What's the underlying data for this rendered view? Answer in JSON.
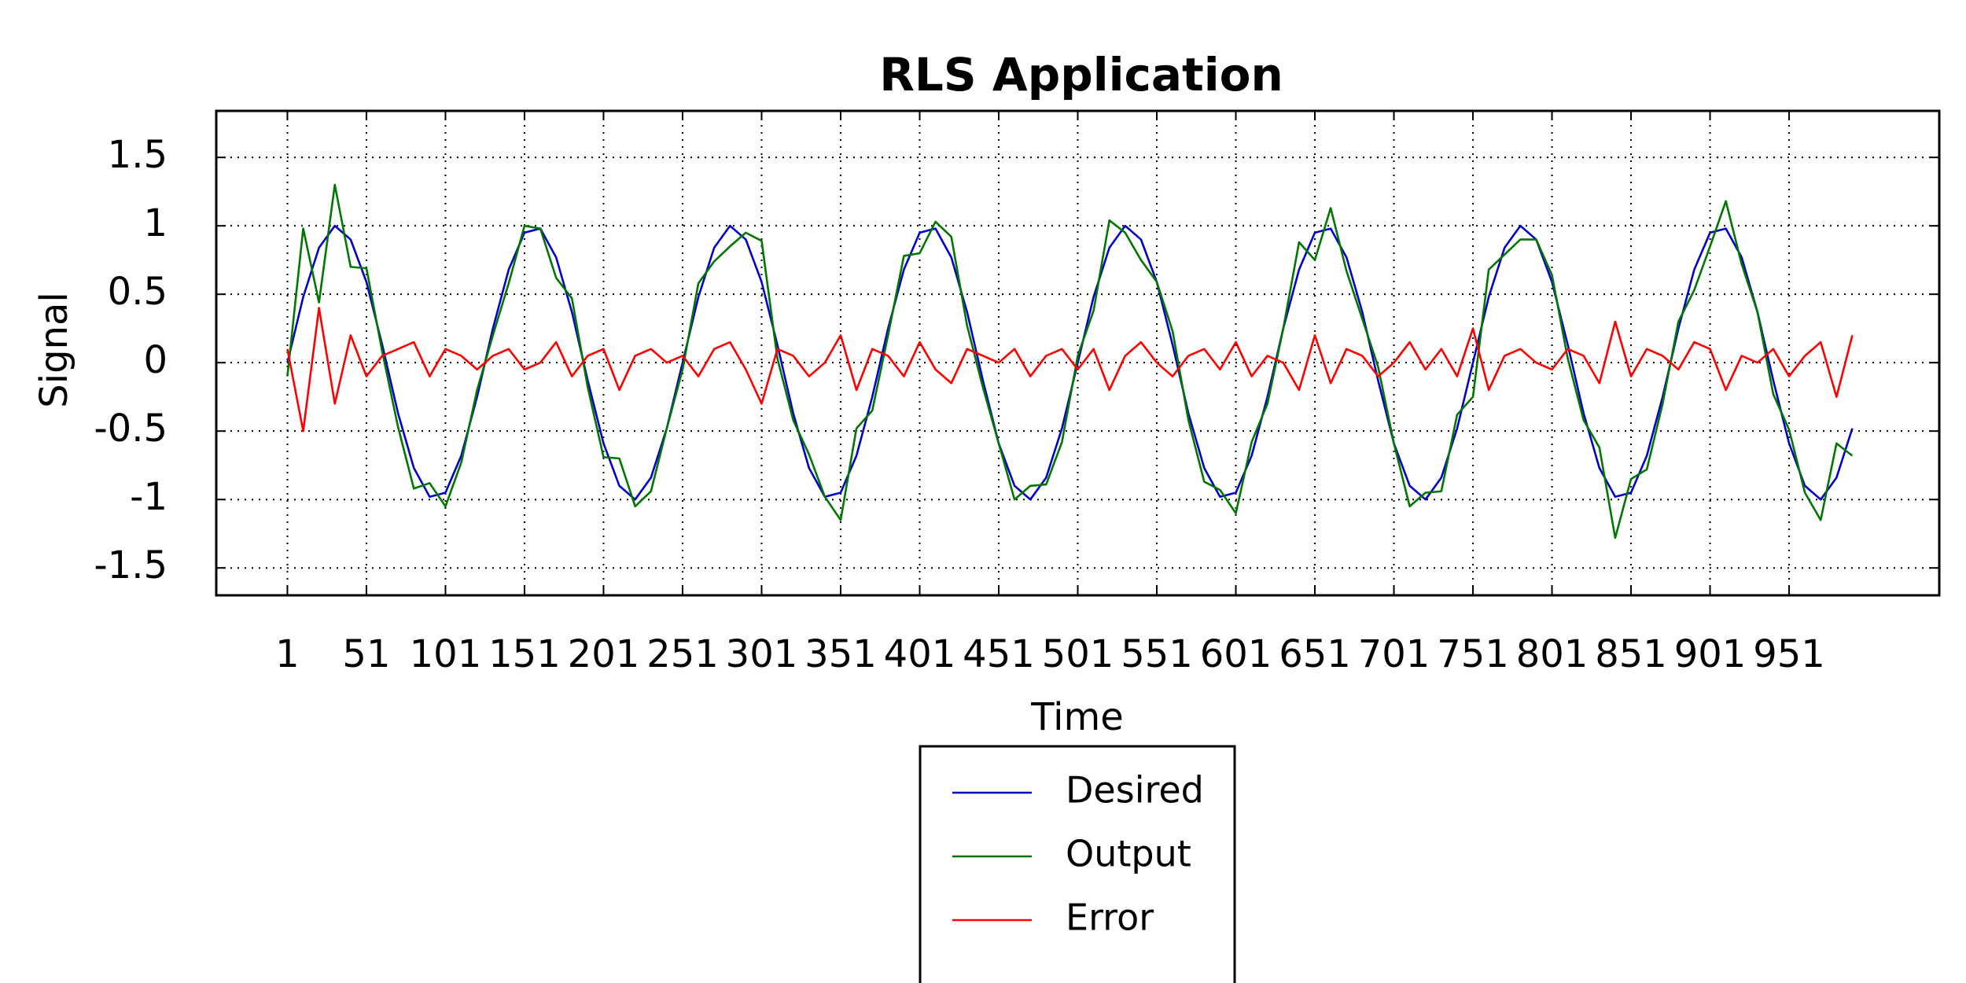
{
  "chart_data": {
    "type": "line",
    "title": "RLS Application",
    "xlabel": "Time",
    "ylabel": "Signal",
    "x": [
      1,
      11,
      21,
      31,
      41,
      51,
      61,
      71,
      81,
      91,
      101,
      111,
      121,
      131,
      141,
      151,
      161,
      171,
      181,
      191,
      201,
      211,
      221,
      231,
      241,
      251,
      261,
      271,
      281,
      291,
      301,
      311,
      321,
      331,
      341,
      351,
      361,
      371,
      381,
      391,
      401,
      411,
      421,
      431,
      441,
      451,
      461,
      471,
      481,
      491,
      501,
      511,
      521,
      531,
      541,
      551,
      561,
      571,
      581,
      591,
      601,
      611,
      621,
      631,
      641,
      651,
      661,
      671,
      681,
      691,
      701,
      711,
      721,
      731,
      741,
      751,
      761,
      771,
      781,
      791,
      801,
      811,
      821,
      831,
      841,
      851,
      861,
      871,
      881,
      891,
      901,
      911,
      921,
      931,
      941,
      951,
      961,
      971,
      981,
      991
    ],
    "series": [
      {
        "name": "Desired",
        "color": "#0000cc",
        "values": [
          0,
          0.48,
          0.84,
          1.0,
          0.9,
          0.59,
          0.13,
          -0.37,
          -0.77,
          -0.98,
          -0.95,
          -0.68,
          -0.25,
          0.25,
          0.68,
          0.95,
          0.98,
          0.77,
          0.37,
          -0.13,
          -0.59,
          -0.9,
          -1.0,
          -0.84,
          -0.48,
          0,
          0.48,
          0.84,
          1.0,
          0.9,
          0.59,
          0.13,
          -0.37,
          -0.77,
          -0.98,
          -0.95,
          -0.68,
          -0.25,
          0.25,
          0.68,
          0.95,
          0.98,
          0.77,
          0.37,
          -0.13,
          -0.59,
          -0.9,
          -1.0,
          -0.84,
          -0.48,
          0,
          0.48,
          0.84,
          1.0,
          0.9,
          0.59,
          0.13,
          -0.37,
          -0.77,
          -0.98,
          -0.95,
          -0.68,
          -0.25,
          0.25,
          0.68,
          0.95,
          0.98,
          0.77,
          0.37,
          -0.13,
          -0.59,
          -0.9,
          -1.0,
          -0.84,
          -0.48,
          0,
          0.48,
          0.84,
          1.0,
          0.9,
          0.59,
          0.13,
          -0.37,
          -0.77,
          -0.98,
          -0.95,
          -0.68,
          -0.25,
          0.25,
          0.68,
          0.95,
          0.98,
          0.77,
          0.37,
          -0.13,
          -0.59,
          -0.9,
          -1.0,
          -0.84,
          -0.48
        ]
      },
      {
        "name": "Output",
        "color": "#007700",
        "values": [
          -0.1,
          0.98,
          0.44,
          1.3,
          0.7,
          0.69,
          0.08,
          -0.47,
          -0.92,
          -0.88,
          -1.05,
          -0.73,
          -0.2,
          0.2,
          0.58,
          1.0,
          0.98,
          0.62,
          0.47,
          -0.18,
          -0.69,
          -0.7,
          -1.05,
          -0.94,
          -0.48,
          -0.05,
          0.58,
          0.74,
          0.85,
          0.95,
          0.89,
          0.03,
          -0.42,
          -0.67,
          -0.98,
          -1.15,
          -0.48,
          -0.35,
          0.2,
          0.78,
          0.8,
          1.03,
          0.92,
          0.27,
          -0.18,
          -0.59,
          -1.0,
          -0.9,
          -0.89,
          -0.58,
          0.05,
          0.38,
          1.04,
          0.95,
          0.75,
          0.59,
          0.23,
          -0.42,
          -0.87,
          -0.93,
          -1.1,
          -0.58,
          -0.3,
          0.25,
          0.88,
          0.75,
          1.13,
          0.67,
          0.32,
          -0.03,
          -0.59,
          -1.05,
          -0.95,
          -0.94,
          -0.38,
          -0.25,
          0.68,
          0.79,
          0.9,
          0.9,
          0.64,
          0.03,
          -0.42,
          -0.62,
          -1.28,
          -0.85,
          -0.78,
          -0.3,
          0.3,
          0.53,
          0.85,
          1.18,
          0.72,
          0.37,
          -0.23,
          -0.49,
          -0.95,
          -1.15,
          -0.59,
          -0.68
        ]
      },
      {
        "name": "Error",
        "color": "#ff0000",
        "values": [
          0.1,
          -0.5,
          0.4,
          -0.3,
          0.2,
          -0.1,
          0.05,
          0.1,
          0.15,
          -0.1,
          0.1,
          0.05,
          -0.05,
          0.05,
          0.1,
          -0.05,
          0,
          0.15,
          -0.1,
          0.05,
          0.1,
          -0.2,
          0.05,
          0.1,
          0,
          0.05,
          -0.1,
          0.1,
          0.15,
          -0.05,
          -0.3,
          0.1,
          0.05,
          -0.1,
          0,
          0.2,
          -0.2,
          0.1,
          0.05,
          -0.1,
          0.15,
          -0.05,
          -0.15,
          0.1,
          0.05,
          0,
          0.1,
          -0.1,
          0.05,
          0.1,
          -0.05,
          0.1,
          -0.2,
          0.05,
          0.15,
          0,
          -0.1,
          0.05,
          0.1,
          -0.05,
          0.15,
          -0.1,
          0.05,
          0,
          -0.2,
          0.2,
          -0.15,
          0.1,
          0.05,
          -0.1,
          0,
          0.15,
          -0.05,
          0.1,
          -0.1,
          0.25,
          -0.2,
          0.05,
          0.1,
          0,
          -0.05,
          0.1,
          0.05,
          -0.15,
          0.3,
          -0.1,
          0.1,
          0.05,
          -0.05,
          0.15,
          0.1,
          -0.2,
          0.05,
          0,
          0.1,
          -0.1,
          0.05,
          0.15,
          -0.25,
          0.2
        ]
      }
    ],
    "xlim": [
      -44,
      1046
    ],
    "ylim": [
      -1.7,
      1.84
    ],
    "xticks": [
      1,
      51,
      101,
      151,
      201,
      251,
      301,
      351,
      401,
      451,
      501,
      551,
      601,
      651,
      701,
      751,
      801,
      851,
      901,
      951
    ],
    "yticks": [
      -1.5,
      -1,
      -0.5,
      0,
      0.5,
      1,
      1.5
    ],
    "grid": true,
    "legend": "below"
  }
}
